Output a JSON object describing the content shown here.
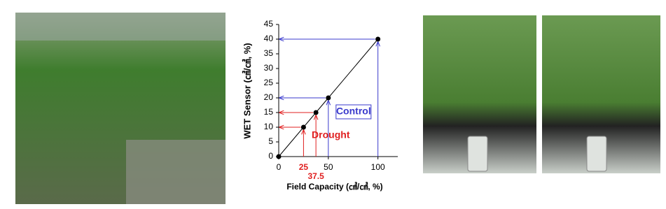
{
  "chart_data": {
    "type": "line",
    "ylabel": "WET Sensor (㎤/㎤, %)",
    "xlabel": "Field Capacity (㎤/㎤, %)",
    "xlim": [
      0,
      120
    ],
    "xticks": [
      0,
      50,
      100
    ],
    "ylim": [
      0,
      45
    ],
    "yticks": [
      0,
      5,
      10,
      15,
      20,
      25,
      30,
      35,
      40,
      45
    ],
    "series": [
      {
        "color": "#000000",
        "x": [
          0
        ],
        "values": [
          0
        ]
      },
      {
        "name": "Drought",
        "color": "#e02020",
        "x": [
          25,
          37.5
        ],
        "values": [
          10,
          15
        ]
      },
      {
        "name": "Control",
        "color": "#3a3acc",
        "x": [
          50,
          100
        ],
        "values": [
          20,
          40
        ]
      }
    ]
  }
}
